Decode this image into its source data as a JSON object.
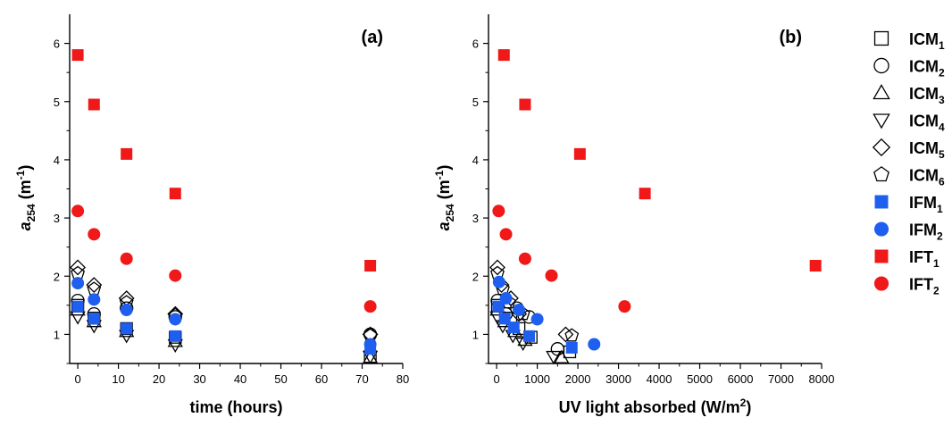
{
  "chart_data": [
    {
      "type": "scatter",
      "panel_label": "(a)",
      "xlabel": "time (hours)",
      "ylabel": {
        "italic": "a",
        "sub": "254",
        "rest": " (m",
        "sup": "-1",
        "close": ")"
      },
      "xlim": [
        -2,
        80
      ],
      "ylim": [
        0.5,
        6.5
      ],
      "xticks": [
        0,
        10,
        20,
        30,
        40,
        50,
        60,
        70,
        80
      ],
      "yticks": [
        1,
        2,
        3,
        4,
        5,
        6
      ],
      "series": [
        {
          "id": "ICM1",
          "marker": "square",
          "fill": "none",
          "color": "#000000",
          "points": [
            [
              0,
              1.5
            ],
            [
              4,
              1.28
            ],
            [
              12,
              1.1
            ],
            [
              24,
              0.95
            ],
            [
              72,
              0.62
            ]
          ]
        },
        {
          "id": "ICM2",
          "marker": "circle",
          "fill": "none",
          "color": "#000000",
          "points": [
            [
              0,
              1.58
            ],
            [
              4,
              1.35
            ],
            [
              12,
              1.45
            ],
            [
              24,
              1.3
            ],
            [
              72,
              1.0
            ]
          ]
        },
        {
          "id": "ICM3",
          "marker": "triangle-up",
          "fill": "none",
          "color": "#000000",
          "points": [
            [
              0,
              1.42
            ],
            [
              4,
              1.22
            ],
            [
              12,
              1.05
            ],
            [
              24,
              0.88
            ],
            [
              72,
              0.6
            ]
          ]
        },
        {
          "id": "ICM4",
          "marker": "triangle-down",
          "fill": "none",
          "color": "#000000",
          "points": [
            [
              0,
              1.3
            ],
            [
              4,
              1.15
            ],
            [
              12,
              0.98
            ],
            [
              24,
              0.82
            ],
            [
              72,
              0.62
            ]
          ]
        },
        {
          "id": "ICM5",
          "marker": "diamond",
          "fill": "none",
          "color": "#000000",
          "points": [
            [
              0,
              2.15
            ],
            [
              4,
              1.85
            ],
            [
              12,
              1.62
            ],
            [
              24,
              1.35
            ],
            [
              72,
              1.0
            ]
          ]
        },
        {
          "id": "ICM6",
          "marker": "pentagon",
          "fill": "none",
          "color": "#000000",
          "points": [
            [
              0,
              2.05
            ],
            [
              4,
              1.78
            ],
            [
              12,
              1.55
            ],
            [
              24,
              1.33
            ],
            [
              72,
              0.98
            ]
          ]
        },
        {
          "id": "IFM1",
          "marker": "square",
          "fill": "#1f5ff0",
          "color": "#1f5ff0",
          "points": [
            [
              0,
              1.48
            ],
            [
              4,
              1.27
            ],
            [
              12,
              1.1
            ],
            [
              24,
              0.97
            ],
            [
              72,
              0.75
            ]
          ]
        },
        {
          "id": "IFM2",
          "marker": "circle",
          "fill": "#1f5ff0",
          "color": "#1f5ff0",
          "points": [
            [
              0,
              1.88
            ],
            [
              4,
              1.6
            ],
            [
              12,
              1.42
            ],
            [
              24,
              1.26
            ],
            [
              72,
              0.83
            ]
          ]
        },
        {
          "id": "IFT1",
          "marker": "square",
          "fill": "#f01818",
          "color": "#f01818",
          "points": [
            [
              0,
              5.8
            ],
            [
              4,
              4.95
            ],
            [
              12,
              4.1
            ],
            [
              24,
              3.42
            ],
            [
              72,
              2.18
            ]
          ]
        },
        {
          "id": "IFT2",
          "marker": "circle",
          "fill": "#f01818",
          "color": "#f01818",
          "points": [
            [
              0,
              3.12
            ],
            [
              4,
              2.72
            ],
            [
              12,
              2.3
            ],
            [
              24,
              2.01
            ],
            [
              72,
              1.48
            ]
          ]
        }
      ]
    },
    {
      "type": "scatter",
      "panel_label": "(b)",
      "xlabel": {
        "text": "UV light absorbed (W/m",
        "sup": "2",
        "close": ")"
      },
      "ylabel": {
        "italic": "a",
        "sub": "254",
        "rest": " (m",
        "sup": "-1",
        "close": ")"
      },
      "xlim": [
        -200,
        8000
      ],
      "ylim": [
        0.5,
        6.5
      ],
      "xticks": [
        0,
        1000,
        2000,
        3000,
        4000,
        5000,
        6000,
        7000,
        8000
      ],
      "yticks": [
        1,
        2,
        3,
        4,
        5,
        6
      ],
      "series": [
        {
          "id": "ICM1",
          "marker": "square",
          "fill": "none",
          "color": "#000000",
          "points": [
            [
              20,
              1.5
            ],
            [
              350,
              1.28
            ],
            [
              550,
              1.1
            ],
            [
              850,
              0.95
            ],
            [
              1800,
              0.7
            ]
          ]
        },
        {
          "id": "ICM2",
          "marker": "circle",
          "fill": "none",
          "color": "#000000",
          "points": [
            [
              20,
              1.58
            ],
            [
              230,
              1.35
            ],
            [
              500,
              1.45
            ],
            [
              800,
              1.3
            ],
            [
              1500,
              0.75
            ]
          ]
        },
        {
          "id": "ICM3",
          "marker": "triangle-up",
          "fill": "none",
          "color": "#000000",
          "points": [
            [
              20,
              1.42
            ],
            [
              200,
              1.22
            ],
            [
              450,
              1.05
            ],
            [
              700,
              0.9
            ],
            [
              1600,
              0.6
            ]
          ]
        },
        {
          "id": "ICM4",
          "marker": "triangle-down",
          "fill": "none",
          "color": "#000000",
          "points": [
            [
              20,
              1.3
            ],
            [
              150,
              1.15
            ],
            [
              400,
              0.98
            ],
            [
              650,
              0.85
            ],
            [
              1400,
              0.62
            ]
          ]
        },
        {
          "id": "ICM5",
          "marker": "diamond",
          "fill": "none",
          "color": "#000000",
          "points": [
            [
              20,
              2.15
            ],
            [
              120,
              1.85
            ],
            [
              350,
              1.62
            ],
            [
              550,
              1.35
            ],
            [
              1700,
              1.0
            ]
          ]
        },
        {
          "id": "ICM6",
          "marker": "pentagon",
          "fill": "none",
          "color": "#000000",
          "points": [
            [
              20,
              2.05
            ],
            [
              150,
              1.78
            ],
            [
              300,
              1.55
            ],
            [
              650,
              1.35
            ],
            [
              1850,
              0.98
            ]
          ]
        },
        {
          "id": "IFM1",
          "marker": "square",
          "fill": "#1f5ff0",
          "color": "#1f5ff0",
          "points": [
            [
              40,
              1.48
            ],
            [
              200,
              1.27
            ],
            [
              420,
              1.12
            ],
            [
              800,
              0.97
            ],
            [
              1850,
              0.77
            ]
          ]
        },
        {
          "id": "IFM2",
          "marker": "circle",
          "fill": "#1f5ff0",
          "color": "#1f5ff0",
          "points": [
            [
              60,
              1.9
            ],
            [
              230,
              1.62
            ],
            [
              550,
              1.42
            ],
            [
              1000,
              1.26
            ],
            [
              2400,
              0.83
            ]
          ]
        },
        {
          "id": "IFT1",
          "marker": "square",
          "fill": "#f01818",
          "color": "#f01818",
          "points": [
            [
              180,
              5.8
            ],
            [
              700,
              4.95
            ],
            [
              2050,
              4.1
            ],
            [
              3650,
              3.42
            ],
            [
              7850,
              2.18
            ]
          ]
        },
        {
          "id": "IFT2",
          "marker": "circle",
          "fill": "#f01818",
          "color": "#f01818",
          "points": [
            [
              50,
              3.12
            ],
            [
              230,
              2.72
            ],
            [
              700,
              2.3
            ],
            [
              1350,
              2.01
            ],
            [
              3150,
              1.48
            ]
          ]
        }
      ]
    }
  ],
  "legend": {
    "placement": "right",
    "entries": [
      {
        "id": "ICM1",
        "base": "ICM",
        "sub": "1"
      },
      {
        "id": "ICM2",
        "base": "ICM",
        "sub": "2"
      },
      {
        "id": "ICM3",
        "base": "ICM",
        "sub": "3"
      },
      {
        "id": "ICM4",
        "base": "ICM",
        "sub": "4"
      },
      {
        "id": "ICM5",
        "base": "ICM",
        "sub": "5"
      },
      {
        "id": "ICM6",
        "base": "ICM",
        "sub": "6"
      },
      {
        "id": "IFM1",
        "base": "IFM",
        "sub": "1"
      },
      {
        "id": "IFM2",
        "base": "IFM",
        "sub": "2"
      },
      {
        "id": "IFT1",
        "base": "IFT",
        "sub": "1"
      },
      {
        "id": "IFT2",
        "base": "IFT",
        "sub": "2"
      }
    ]
  }
}
